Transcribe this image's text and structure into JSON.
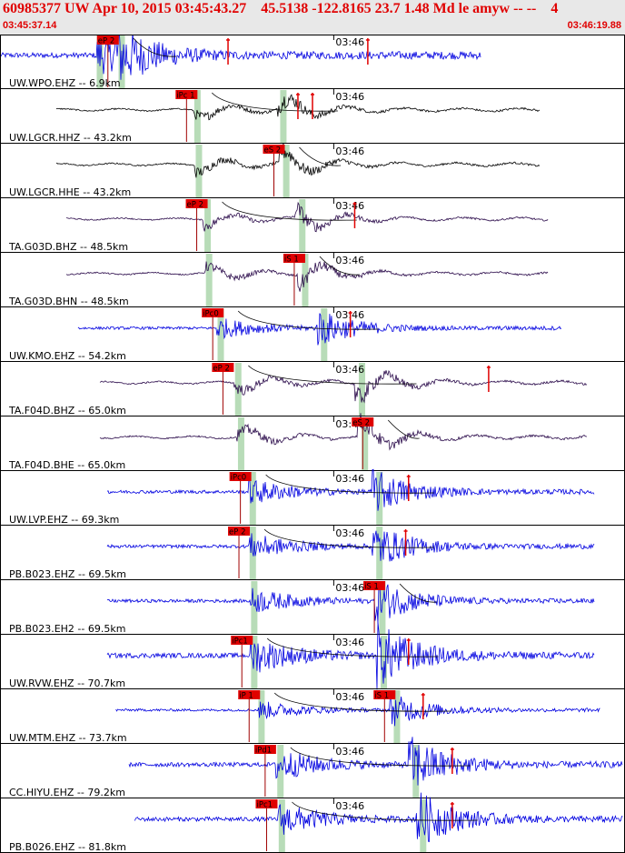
{
  "header": {
    "title": "60985377 UW Apr 10, 2015 03:45:43.27    45.5138 -122.8165 23.7 1.48 Md le amyw -- --    4",
    "start_time": "03:45:37.14",
    "end_time": "03:46:19.88"
  },
  "chart_data": {
    "type": "line",
    "title": "60985377 UW Apr 10, 2015 03:45:43.27    45.5138 -122.8165 23.7 1.48 Md le amyw -- --    4",
    "x_unit": "seconds after 03:45:37.14",
    "x_range": [
      0,
      42.74
    ],
    "minute_tick_label": "03:46",
    "minute_tick_time": 22.86,
    "colors": {
      "blue": "#0000e0",
      "black": "#000000",
      "purple": "#2a0a4a",
      "pick": "#e00000",
      "window": "#b8dcb8"
    },
    "traces": [
      {
        "label": "UW.WPO.EHZ -- 6.9km",
        "color": "blue",
        "amp": 0.85,
        "p_time": 6.8,
        "s_time": 8.3,
        "data_start": 0,
        "data_end": 33,
        "pick": "eP 2",
        "pick_time": 6.6,
        "pick2": "",
        "pick2_time": null,
        "red_marks": [
          15.6,
          25.2
        ]
      },
      {
        "label": "UW.LGCR.HHZ -- 43.2km",
        "color": "black",
        "amp": 0.55,
        "p_time": 13.5,
        "s_time": 19.4,
        "data_start": 3.8,
        "data_end": 37,
        "pick": "iPc 1",
        "pick_time": 12.0,
        "pick2": "",
        "pick2_time": null,
        "red_marks": [
          20.4,
          21.4
        ]
      },
      {
        "label": "UW.LGCR.HHE -- 43.2km",
        "color": "black",
        "amp": 0.55,
        "p_time": 13.6,
        "s_time": 19.6,
        "data_start": 3.8,
        "data_end": 37,
        "pick": "eS 2",
        "pick_time": 18.0,
        "pick2": "",
        "pick2_time": null,
        "red_marks": []
      },
      {
        "label": "TA.G03D.BHZ -- 48.5km",
        "color": "purple",
        "amp": 0.5,
        "p_time": 14.2,
        "s_time": 20.7,
        "data_start": 4.5,
        "data_end": 37.6,
        "pick": "eP 2",
        "pick_time": 12.7,
        "pick2": "",
        "pick2_time": null,
        "red_marks": [
          24.3
        ]
      },
      {
        "label": "TA.G03D.BHN -- 48.5km",
        "color": "purple",
        "amp": 0.5,
        "p_time": 14.3,
        "s_time": 20.9,
        "data_start": 4.5,
        "data_end": 37.6,
        "pick": "iS 1",
        "pick_time": 19.4,
        "pick2": "",
        "pick2_time": null,
        "red_marks": []
      },
      {
        "label": "UW.KMO.EHZ -- 54.2km",
        "color": "blue",
        "amp": 0.45,
        "p_time": 15.1,
        "s_time": 22.2,
        "data_start": 5.3,
        "data_end": 38.5,
        "pick": "iPc0",
        "pick_time": 13.8,
        "pick2": "",
        "pick2_time": null,
        "red_marks": [
          24.0
        ]
      },
      {
        "label": "TA.F04D.BHZ -- 65.0km",
        "color": "purple",
        "amp": 0.6,
        "p_time": 16.3,
        "s_time": 24.8,
        "data_start": 6.8,
        "data_end": 40.3,
        "pick": "eP 2",
        "pick_time": 14.5,
        "pick2": "",
        "pick2_time": null,
        "red_marks": [
          33.5
        ]
      },
      {
        "label": "TA.F04D.BHE -- 65.0km",
        "color": "purple",
        "amp": 0.6,
        "p_time": 16.5,
        "s_time": 25.0,
        "data_start": 6.8,
        "data_end": 40.3,
        "pick": "eS 2",
        "pick_time": 24.1,
        "pick2": "",
        "pick2_time": null,
        "red_marks": []
      },
      {
        "label": "UW.LVP.EHZ -- 69.3km",
        "color": "blue",
        "amp": 0.55,
        "p_time": 17.3,
        "s_time": 26.0,
        "data_start": 7.3,
        "data_end": 40.8,
        "pick": "iPc0",
        "pick_time": 15.7,
        "pick2": "",
        "pick2_time": null,
        "red_marks": [
          28.0
        ]
      },
      {
        "label": "PB.B023.EHZ -- 69.5km",
        "color": "blue",
        "amp": 0.55,
        "p_time": 17.3,
        "s_time": 26.0,
        "data_start": 7.3,
        "data_end": 40.8,
        "pick": "eP 2",
        "pick_time": 15.6,
        "pick2": "",
        "pick2_time": null,
        "red_marks": [
          27.8
        ]
      },
      {
        "label": "PB.B023.EH2 -- 69.5km",
        "color": "blue",
        "amp": 0.55,
        "p_time": 17.4,
        "s_time": 26.2,
        "data_start": 7.3,
        "data_end": 40.8,
        "pick": "iS 1",
        "pick_time": 24.9,
        "pick2": "",
        "pick2_time": null,
        "red_marks": []
      },
      {
        "label": "UW.RVW.EHZ -- 70.7km",
        "color": "blue",
        "amp": 0.8,
        "p_time": 17.4,
        "s_time": 26.3,
        "data_start": 7.3,
        "data_end": 40.8,
        "pick": "iPc1",
        "pick_time": 15.8,
        "pick2": "",
        "pick2_time": null,
        "red_marks": [
          28.0
        ]
      },
      {
        "label": "UW.MTM.EHZ -- 73.7km",
        "color": "blue",
        "amp": 0.4,
        "p_time": 17.9,
        "s_time": 27.2,
        "data_start": 7.9,
        "data_end": 41.2,
        "pick": "iP 1",
        "pick_time": 16.3,
        "pick2": "iS 1",
        "pick2_time": 25.6,
        "red_marks": [
          29.0
        ]
      },
      {
        "label": "CC.HIYU.EHZ -- 79.2km",
        "color": "blue",
        "amp": 0.7,
        "p_time": 19.2,
        "s_time": 28.5,
        "data_start": 8.8,
        "data_end": 42.74,
        "pick": "iPd1",
        "pick_time": 17.4,
        "pick2": "",
        "pick2_time": null,
        "red_marks": [
          31.0
        ]
      },
      {
        "label": "PB.B026.EHZ -- 81.8km",
        "color": "blue",
        "amp": 0.7,
        "p_time": 19.3,
        "s_time": 29.0,
        "data_start": 9.2,
        "data_end": 42.74,
        "pick": "iPc1",
        "pick_time": 17.5,
        "pick2": "",
        "pick2_time": null,
        "red_marks": [
          31.0
        ]
      }
    ]
  }
}
